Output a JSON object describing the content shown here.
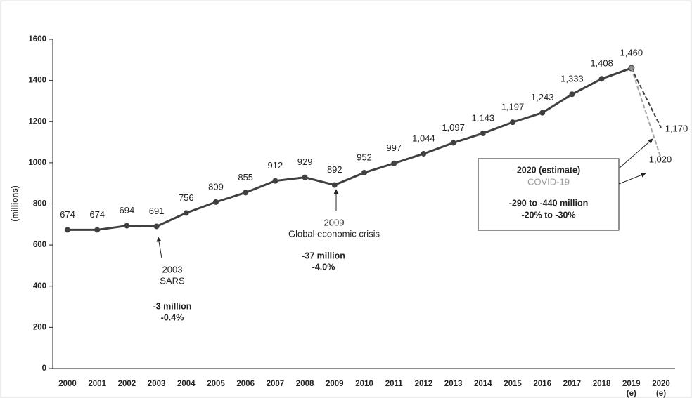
{
  "chart_data": {
    "type": "line",
    "y_label": "(millions)",
    "categories": [
      "2000",
      "2001",
      "2002",
      "2003",
      "2004",
      "2005",
      "2006",
      "2007",
      "2008",
      "2009",
      "2010",
      "2011",
      "2012",
      "2013",
      "2014",
      "2015",
      "2016",
      "2017",
      "2018",
      "2019",
      "2020"
    ],
    "category_notes": [
      null,
      null,
      null,
      null,
      null,
      null,
      null,
      null,
      null,
      null,
      null,
      null,
      null,
      null,
      null,
      null,
      null,
      null,
      null,
      "(e)",
      "(e)"
    ],
    "ylim": [
      0,
      1600
    ],
    "yticks": [
      0,
      200,
      400,
      600,
      800,
      1000,
      1200,
      1400,
      1600
    ],
    "series": [
      {
        "color": "#404040",
        "values": [
          674,
          674,
          694,
          691,
          756,
          809,
          855,
          912,
          929,
          892,
          952,
          997,
          1044,
          1097,
          1143,
          1197,
          1243,
          1333,
          1408,
          1460,
          null
        ],
        "value_labels": [
          "674",
          "674",
          "694",
          "691",
          "756",
          "809",
          "855",
          "912",
          "929",
          "892",
          "952",
          "997",
          "1,044",
          "1,097",
          "1,143",
          "1,197",
          "1,243",
          "1,333",
          "1,408",
          "1,460",
          null
        ]
      },
      {
        "color": "#404040",
        "dashed": true,
        "values": [
          null,
          null,
          null,
          null,
          null,
          null,
          null,
          null,
          null,
          null,
          null,
          null,
          null,
          null,
          null,
          null,
          null,
          null,
          null,
          1460,
          1170
        ],
        "value_labels": [
          null,
          null,
          null,
          null,
          null,
          null,
          null,
          null,
          null,
          null,
          null,
          null,
          null,
          null,
          null,
          null,
          null,
          null,
          null,
          null,
          "1,170"
        ]
      },
      {
        "color": "#a6a6a6",
        "dashed": true,
        "values": [
          null,
          null,
          null,
          null,
          null,
          null,
          null,
          null,
          null,
          null,
          null,
          null,
          null,
          null,
          null,
          null,
          null,
          null,
          null,
          1460,
          1020
        ],
        "value_labels": [
          null,
          null,
          null,
          null,
          null,
          null,
          null,
          null,
          null,
          null,
          null,
          null,
          null,
          null,
          null,
          null,
          null,
          null,
          null,
          null,
          "1,020"
        ]
      }
    ],
    "annotations": [
      {
        "lines": [
          "2003",
          "SARS",
          "-3 million",
          "-0.4%"
        ]
      },
      {
        "lines": [
          "2009",
          "Global economic crisis",
          "-37 million",
          "-4.0%"
        ]
      },
      {
        "lines": [
          "2020 (estimate)",
          "COVID-19",
          "-290 to -440 million",
          "-20% to -30%"
        ]
      }
    ]
  }
}
